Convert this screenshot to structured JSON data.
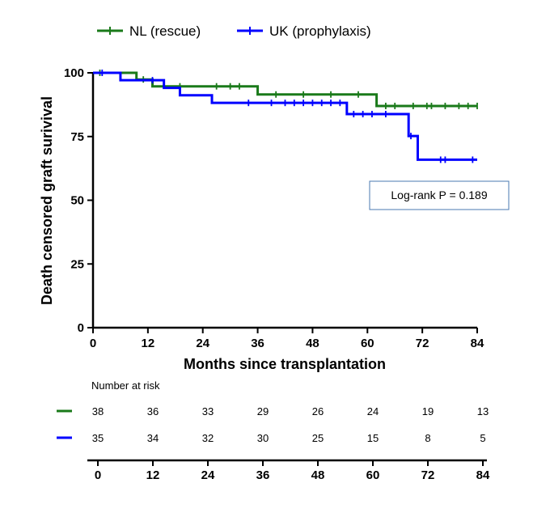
{
  "chart_data": {
    "type": "line",
    "step": true,
    "xlabel": "Months since transplantation",
    "ylabel": "Death censored graft surivival",
    "xlim": [
      0,
      84
    ],
    "ylim": [
      0,
      100
    ],
    "xticks": [
      0,
      12,
      24,
      36,
      48,
      60,
      72,
      84
    ],
    "yticks": [
      0,
      25,
      50,
      75,
      100
    ],
    "legend_position": "top",
    "annotation": "Log-rank P = 0.189",
    "series": [
      {
        "name": "NL (rescue)",
        "color": "#1a7a1a",
        "steps": [
          [
            0,
            100
          ],
          [
            9.5,
            97.4
          ],
          [
            13,
            94.7
          ],
          [
            36,
            91.5
          ],
          [
            62,
            87
          ]
        ],
        "end_x": 84,
        "censored": [
          [
            1.5,
            100
          ],
          [
            11,
            97.4
          ],
          [
            19,
            94.7
          ],
          [
            27,
            94.7
          ],
          [
            30,
            94.7
          ],
          [
            32,
            94.7
          ],
          [
            40,
            91.5
          ],
          [
            46,
            91.5
          ],
          [
            52,
            91.5
          ],
          [
            58,
            91.5
          ],
          [
            64,
            87
          ],
          [
            66,
            87
          ],
          [
            70,
            87
          ],
          [
            73,
            87
          ],
          [
            74,
            87
          ],
          [
            77,
            87
          ],
          [
            80,
            87
          ],
          [
            82,
            87
          ],
          [
            84,
            87
          ]
        ]
      },
      {
        "name": "UK (prophylaxis)",
        "color": "#0000ff",
        "steps": [
          [
            0,
            100
          ],
          [
            6,
            97.1
          ],
          [
            15.5,
            94.1
          ],
          [
            19,
            91.2
          ],
          [
            26,
            88.2
          ],
          [
            55.5,
            83.8
          ],
          [
            69,
            75.2
          ],
          [
            71,
            65.9
          ]
        ],
        "end_x": 84,
        "censored": [
          [
            2,
            100
          ],
          [
            13,
            97.1
          ],
          [
            34,
            88.2
          ],
          [
            39,
            88.2
          ],
          [
            42,
            88.2
          ],
          [
            44,
            88.2
          ],
          [
            46,
            88.2
          ],
          [
            48,
            88.2
          ],
          [
            50,
            88.2
          ],
          [
            52,
            88.2
          ],
          [
            54,
            88.2
          ],
          [
            57,
            83.8
          ],
          [
            59,
            83.8
          ],
          [
            61,
            83.8
          ],
          [
            64,
            83.8
          ],
          [
            69.5,
            75.2
          ],
          [
            76,
            65.9
          ],
          [
            77,
            65.9
          ],
          [
            83,
            65.9
          ]
        ]
      }
    ]
  },
  "risk_table": {
    "title": "Number at risk",
    "times": [
      "0",
      "12",
      "24",
      "36",
      "48",
      "60",
      "72",
      "84"
    ],
    "rows": [
      {
        "color": "#1a7a1a",
        "values": [
          "38",
          "36",
          "33",
          "29",
          "26",
          "24",
          "19",
          "13"
        ]
      },
      {
        "color": "#0000ff",
        "values": [
          "35",
          "34",
          "32",
          "30",
          "25",
          "15",
          "8",
          "5"
        ]
      }
    ]
  }
}
